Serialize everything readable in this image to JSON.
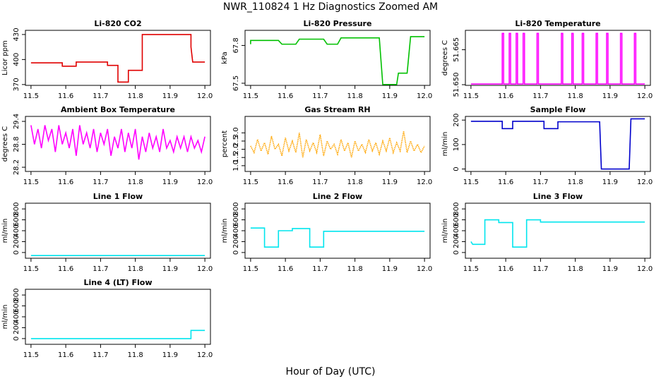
{
  "title": "NWR_110824  1 Hz Diagnostics Zoomed AM",
  "x_label": "Hour of Day (UTC)",
  "chart_data": [
    {
      "type": "line",
      "title": "Li-820 CO2",
      "y_label": "Licor ppm",
      "color": "#e00000",
      "x": [
        11.5,
        11.59,
        11.59,
        11.63,
        11.63,
        11.72,
        11.72,
        11.75,
        11.75,
        11.78,
        11.78,
        11.82,
        11.82,
        11.96,
        11.96,
        11.965,
        12.0
      ],
      "values": [
        396,
        396,
        392,
        392,
        397,
        397,
        393,
        393,
        373,
        373,
        387,
        387,
        430,
        430,
        415,
        397,
        397
      ],
      "xlim": [
        11.484,
        12.016
      ],
      "xticks": [
        11.5,
        11.6,
        11.7,
        11.8,
        11.9,
        {
          "value": 12.0,
          "label": "12.0"
        }
      ],
      "ylim": [
        369,
        435
      ],
      "yticks": [
        370,
        400,
        430
      ]
    },
    {
      "type": "line",
      "title": "Li-820 Pressure",
      "y_label": "kPa",
      "color": "#00c000",
      "x": [
        11.5,
        11.5,
        11.51,
        11.58,
        11.59,
        11.63,
        11.64,
        11.71,
        11.72,
        11.75,
        11.76,
        11.87,
        11.88,
        11.92,
        11.925,
        11.95,
        11.96,
        12.0
      ],
      "values": [
        67.81,
        67.84,
        67.84,
        67.84,
        67.81,
        67.81,
        67.85,
        67.85,
        67.81,
        67.81,
        67.86,
        67.86,
        67.49,
        67.49,
        67.58,
        67.58,
        67.87,
        67.87
      ],
      "xlim": [
        11.484,
        12.016
      ],
      "xticks": [
        11.5,
        11.6,
        11.7,
        11.8,
        11.9,
        {
          "value": 12.0,
          "label": "12.0"
        }
      ],
      "ylim": [
        67.483,
        67.92
      ],
      "yticks": [
        67.5,
        67.8
      ]
    },
    {
      "type": "line",
      "title": "Li-820 Temperature",
      "y_label": "degrees C",
      "color": "#ff00ff",
      "x": [
        11.5,
        11.59,
        11.59,
        11.594,
        11.594,
        11.61,
        11.61,
        11.614,
        11.614,
        11.63,
        11.63,
        11.634,
        11.634,
        11.65,
        11.65,
        11.654,
        11.654,
        11.69,
        11.69,
        11.694,
        11.694,
        11.76,
        11.76,
        11.764,
        11.764,
        11.79,
        11.79,
        11.794,
        11.794,
        11.82,
        11.82,
        11.824,
        11.824,
        11.86,
        11.86,
        11.864,
        11.864,
        11.89,
        11.89,
        11.894,
        11.894,
        11.93,
        11.93,
        11.934,
        11.934,
        11.97,
        11.97,
        11.974,
        11.974,
        12.0
      ],
      "values": [
        51.6503,
        51.6503,
        51.672,
        51.672,
        51.6503,
        51.6503,
        51.672,
        51.672,
        51.6503,
        51.6503,
        51.672,
        51.672,
        51.6503,
        51.6503,
        51.672,
        51.672,
        51.6503,
        51.6503,
        51.672,
        51.672,
        51.6503,
        51.6503,
        51.672,
        51.672,
        51.6503,
        51.6503,
        51.672,
        51.672,
        51.6503,
        51.6503,
        51.672,
        51.672,
        51.6503,
        51.6503,
        51.672,
        51.672,
        51.6503,
        51.6503,
        51.672,
        51.672,
        51.6503,
        51.6503,
        51.672,
        51.672,
        51.6503,
        51.6503,
        51.672,
        51.672,
        51.6503,
        51.6503
      ],
      "xlim": [
        11.484,
        12.016
      ],
      "xticks": [
        11.5,
        11.6,
        11.7,
        11.8,
        11.9,
        {
          "value": 12.0,
          "label": "12.0"
        }
      ],
      "ylim": [
        51.6497,
        51.6733
      ],
      "yticks": [
        {
          "value": 51.65,
          "label": "51.650"
        },
        51.665
      ]
    },
    {
      "type": "line",
      "title": "Ambient Box Temperature",
      "y_label": "degrees C",
      "color": "#ff00ff",
      "x": [
        11.5,
        11.51,
        11.52,
        11.53,
        11.54,
        11.55,
        11.56,
        11.57,
        11.58,
        11.59,
        11.6,
        11.61,
        11.62,
        11.63,
        11.64,
        11.65,
        11.66,
        11.67,
        11.68,
        11.69,
        11.7,
        11.71,
        11.72,
        11.73,
        11.74,
        11.75,
        11.76,
        11.77,
        11.78,
        11.79,
        11.8,
        11.81,
        11.82,
        11.83,
        11.84,
        11.85,
        11.86,
        11.87,
        11.88,
        11.89,
        11.9,
        11.91,
        11.92,
        11.93,
        11.94,
        11.95,
        11.96,
        11.97,
        11.98,
        11.99,
        12.0
      ],
      "values": [
        29.3,
        28.8,
        29.2,
        28.7,
        29.3,
        28.9,
        29.2,
        28.6,
        29.3,
        28.8,
        29.1,
        28.7,
        29.2,
        28.5,
        29.3,
        28.8,
        29.1,
        28.7,
        29.2,
        28.6,
        29.1,
        28.8,
        29.2,
        28.5,
        29.0,
        28.7,
        29.2,
        28.6,
        29.1,
        28.7,
        29.2,
        28.4,
        29.0,
        28.6,
        29.1,
        28.7,
        29.0,
        28.6,
        29.2,
        28.7,
        28.9,
        28.6,
        29.0,
        28.7,
        29.0,
        28.6,
        29.0,
        28.7,
        28.9,
        28.6,
        29.0
      ],
      "xlim": [
        11.484,
        12.016
      ],
      "xticks": [
        11.5,
        11.6,
        11.7,
        11.8,
        11.9,
        {
          "value": 12.0,
          "label": "12.0"
        }
      ],
      "ylim": [
        28.09,
        29.53
      ],
      "yticks": [
        28.2,
        28.8,
        29.4
      ]
    },
    {
      "type": "line",
      "title": "Gas Stream RH",
      "y_label": "percent",
      "color": "#ffa500",
      "line_style": "dotted",
      "x": [
        11.5,
        11.51,
        11.52,
        11.53,
        11.54,
        11.55,
        11.56,
        11.57,
        11.58,
        11.59,
        11.6,
        11.61,
        11.62,
        11.63,
        11.64,
        11.65,
        11.66,
        11.67,
        11.68,
        11.69,
        11.7,
        11.71,
        11.72,
        11.73,
        11.74,
        11.75,
        11.76,
        11.77,
        11.78,
        11.79,
        11.8,
        11.81,
        11.82,
        11.83,
        11.84,
        11.85,
        11.86,
        11.87,
        11.88,
        11.89,
        11.9,
        11.91,
        11.92,
        11.93,
        11.94,
        11.95,
        11.96,
        11.97,
        11.98,
        11.99,
        12.0
      ],
      "values": [
        2.2,
        1.8,
        2.6,
        1.9,
        2.4,
        1.7,
        2.8,
        2.0,
        2.3,
        1.6,
        2.7,
        1.9,
        2.5,
        1.8,
        3.0,
        1.5,
        2.6,
        1.9,
        2.4,
        1.8,
        2.9,
        1.6,
        2.5,
        2.0,
        2.3,
        1.7,
        2.6,
        1.9,
        2.4,
        1.5,
        2.5,
        1.9,
        2.3,
        1.8,
        2.6,
        1.9,
        2.4,
        1.7,
        2.5,
        1.9,
        2.7,
        1.8,
        2.4,
        1.9,
        3.1,
        1.8,
        2.5,
        1.9,
        2.3,
        1.8,
        2.2
      ],
      "xlim": [
        11.484,
        12.016
      ],
      "xticks": [
        11.5,
        11.6,
        11.7,
        11.8,
        11.9,
        {
          "value": 12.0,
          "label": "12.0"
        }
      ],
      "ylim": [
        0.65,
        4.0
      ],
      "yticks": [
        {
          "value": 1.0,
          "label": "1.0"
        },
        1.5,
        {
          "value": 2.0,
          "label": "2.0"
        },
        2.5,
        {
          "value": 3.0,
          "label": "3.0"
        }
      ]
    },
    {
      "type": "line",
      "title": "Sample Flow",
      "y_label": "ml/min",
      "color": "#0000cc",
      "x": [
        11.5,
        11.59,
        11.59,
        11.62,
        11.62,
        11.71,
        11.71,
        11.75,
        11.75,
        11.87,
        11.875,
        11.955,
        11.96,
        12.0
      ],
      "values": [
        195,
        195,
        165,
        165,
        195,
        195,
        165,
        165,
        193,
        193,
        0,
        0,
        205,
        205
      ],
      "xlim": [
        11.484,
        12.016
      ],
      "xticks": [
        11.5,
        11.6,
        11.7,
        11.8,
        11.9,
        {
          "value": 12.0,
          "label": "12.0"
        }
      ],
      "ylim": [
        -10,
        215
      ],
      "yticks": [
        0,
        100,
        200
      ]
    },
    {
      "type": "line",
      "title": "Line 1 Flow",
      "y_label": "ml/min",
      "color": "#00e5ee",
      "x": [
        11.5,
        12.0
      ],
      "values": [
        -55,
        -55
      ],
      "xlim": [
        11.484,
        12.016
      ],
      "xticks": [
        11.5,
        11.6,
        11.7,
        11.8,
        11.9,
        {
          "value": 12.0,
          "label": "12.0"
        }
      ],
      "ylim": [
        -105,
        905
      ],
      "yticks": [
        0,
        200,
        400,
        600,
        800
      ]
    },
    {
      "type": "line",
      "title": "Line 2 Flow",
      "y_label": "ml/min",
      "color": "#00e5ee",
      "x": [
        11.5,
        11.54,
        11.54,
        11.58,
        11.58,
        11.62,
        11.62,
        11.67,
        11.67,
        11.71,
        11.71,
        12.0
      ],
      "values": [
        450,
        450,
        100,
        100,
        400,
        400,
        440,
        440,
        100,
        100,
        390,
        390
      ],
      "xlim": [
        11.484,
        12.016
      ],
      "xticks": [
        11.5,
        11.6,
        11.7,
        11.8,
        11.9,
        {
          "value": 12.0,
          "label": "12.0"
        }
      ],
      "ylim": [
        -105,
        905
      ],
      "yticks": [
        0,
        200,
        400,
        600,
        800
      ]
    },
    {
      "type": "line",
      "title": "Line 3 Flow",
      "y_label": "ml/min",
      "color": "#00e5ee",
      "x": [
        11.5,
        11.505,
        11.54,
        11.54,
        11.58,
        11.58,
        11.62,
        11.62,
        11.66,
        11.66,
        11.7,
        11.7,
        12.0
      ],
      "values": [
        200,
        150,
        150,
        600,
        600,
        550,
        550,
        100,
        100,
        600,
        600,
        560,
        560
      ],
      "xlim": [
        11.484,
        12.016
      ],
      "xticks": [
        11.5,
        11.6,
        11.7,
        11.8,
        11.9,
        {
          "value": 12.0,
          "label": "12.0"
        }
      ],
      "ylim": [
        -105,
        905
      ],
      "yticks": [
        0,
        200,
        400,
        600,
        800
      ]
    },
    {
      "type": "line",
      "title": "Line 4 (LT) Flow",
      "y_label": "ml/min",
      "color": "#00e5ee",
      "x": [
        11.5,
        11.96,
        11.96,
        12.0
      ],
      "values": [
        0,
        0,
        150,
        150
      ],
      "xlim": [
        11.484,
        12.016
      ],
      "xticks": [
        11.5,
        11.6,
        11.7,
        11.8,
        11.9,
        {
          "value": 12.0,
          "label": "12.0"
        }
      ],
      "ylim": [
        -105,
        905
      ],
      "yticks": [
        0,
        200,
        400,
        600,
        800
      ]
    }
  ]
}
